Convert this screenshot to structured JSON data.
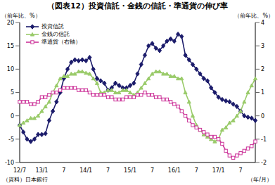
{
  "chart_data": {
    "type": "line",
    "title": "（図表12）投資信託・金銭の信託・準通貨の伸び率",
    "y_label": "（前年比、%）",
    "y2_label": "（前年比、%）",
    "x_label": "（年/月）",
    "source": "（資料）日本銀行",
    "categories": [
      "12/7",
      null,
      null,
      null,
      null,
      null,
      "13/1",
      null,
      null,
      null,
      null,
      null,
      "7",
      null,
      null,
      null,
      null,
      null,
      "14/1",
      null,
      null,
      null,
      null,
      null,
      "7",
      null,
      null,
      null,
      null,
      null,
      "15/1",
      null,
      null,
      null,
      null,
      null,
      "7",
      null,
      null,
      null,
      null,
      null,
      "16/1",
      null,
      null,
      null,
      null,
      null,
      "7",
      null,
      null,
      null,
      null,
      null,
      "17/1",
      null,
      null,
      null,
      null,
      null,
      "7",
      null,
      null,
      null,
      null
    ],
    "series": [
      {
        "name": "投資信託",
        "color": "#1c1c6b",
        "marker": "diamond",
        "line_style": "solid",
        "values": [
          -2,
          -3.5,
          -5,
          -5.5,
          -5,
          -4,
          -4,
          -3.8,
          -1,
          1,
          3,
          5,
          8,
          10,
          11.5,
          12,
          11.8,
          12,
          11.8,
          12.5,
          10,
          8,
          7.5,
          7,
          5.5,
          6,
          7,
          6.5,
          6,
          6,
          6.5,
          7,
          9,
          11,
          13,
          15,
          15.5,
          14.5,
          14,
          15,
          16,
          16.5,
          16,
          17.5,
          17,
          13,
          12,
          11,
          10,
          9,
          8,
          7.5,
          6,
          5,
          4,
          3.5,
          3.2,
          3,
          2.5,
          2,
          1,
          0,
          -0.3,
          -0.5,
          -1
        ]
      },
      {
        "name": "金銭の信託",
        "color": "#9acb6a",
        "marker": "triangle",
        "line_style": "solid",
        "values": [
          -2,
          -1.5,
          -1,
          -0.5,
          -0.5,
          0,
          1,
          2,
          3,
          5,
          6.5,
          8,
          8.5,
          8.5,
          9,
          9,
          9.5,
          9.5,
          9.2,
          9,
          8,
          7,
          5,
          5,
          5.5,
          5.5,
          5,
          5,
          5.5,
          5.5,
          5,
          4.5,
          5,
          6,
          7,
          8,
          9,
          9.5,
          9.5,
          9,
          9,
          8.5,
          8.5,
          8,
          8,
          5,
          3,
          0,
          -2,
          -3,
          -4,
          -4.5,
          -5,
          -5.5,
          -5,
          -3,
          -2.5,
          -1.5,
          -1,
          0,
          1,
          3,
          5,
          6.5,
          8
        ]
      },
      {
        "name": "準通貨（右軸）",
        "color": "#cc3399",
        "marker": "square",
        "line_style": "solid",
        "axis": "y2",
        "values": [
          0.6,
          0.6,
          0.6,
          0.5,
          0.5,
          0.6,
          0.8,
          0.8,
          0.9,
          1.0,
          1.0,
          1.1,
          1.2,
          1.2,
          1.2,
          1.2,
          1.1,
          1.1,
          1.1,
          1.0,
          0.9,
          0.9,
          0.9,
          0.9,
          0.8,
          0.8,
          0.7,
          0.7,
          0.7,
          0.8,
          0.8,
          0.8,
          0.9,
          0.9,
          1.0,
          0.9,
          0.9,
          0.8,
          0.8,
          0.7,
          0.7,
          0.6,
          0.5,
          0.4,
          0.2,
          0,
          -0.2,
          -0.4,
          -0.5,
          -0.6,
          -0.7,
          -0.8,
          -0.9,
          -0.9,
          -1.0,
          -1.2,
          -1.5,
          -1.7,
          -1.8,
          -1.7,
          -1.6,
          -1.5,
          -1.4,
          -1.3,
          -1.1
        ]
      }
    ],
    "ylim": [
      -10,
      20
    ],
    "yticks": [
      -10,
      -5,
      0,
      5,
      10,
      15,
      20
    ],
    "y2lim": [
      -2,
      4
    ],
    "y2ticks": [
      -2,
      -1,
      0,
      1,
      2,
      3,
      4
    ],
    "legend": "upper left",
    "grid": false
  }
}
